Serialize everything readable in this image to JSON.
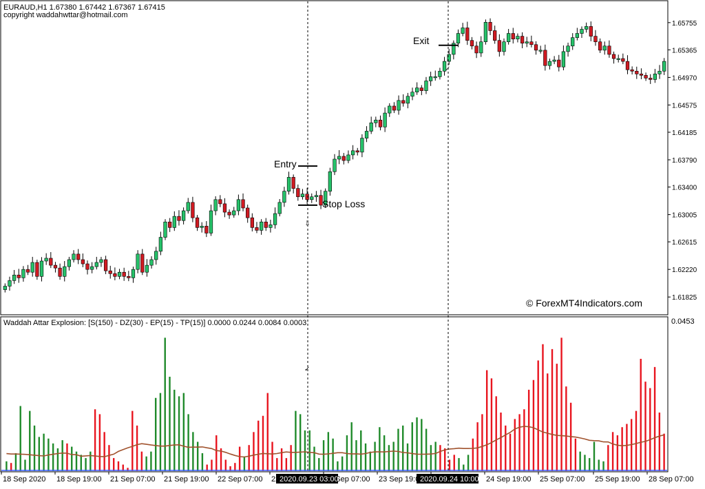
{
  "header": {
    "symbol_line": "EURAUD,H1  1.67380 1.67442 1.67367 1.67415",
    "copyright": "copyright waddahwttar@hotmail.com"
  },
  "watermark": "© ForexMT4Indicators.com",
  "colors": {
    "bull": "#26c26a",
    "bear": "#d01a22",
    "hist_green": "#1f8a2a",
    "hist_red": "#e8141e",
    "explosion_line": "#a0522d",
    "axis": "#000000"
  },
  "chart_data": [
    {
      "type": "candlestick",
      "title": "EURAUD,H1",
      "ylim": [
        1.6162,
        1.66
      ],
      "y_ticks": [
        "1.65755",
        "1.65365",
        "1.64970",
        "1.64575",
        "1.64185",
        "1.63790",
        "1.63400",
        "1.63005",
        "1.62615",
        "1.62220",
        "1.61825"
      ],
      "x_ticks": [
        "18 Sep 2020",
        "18 Sep 19:00",
        "21 Sep 07:00",
        "21 Sep 19:00",
        "22 Sep 07:00",
        "22 Sep 19:00",
        "23 Sep 07:00",
        "23 Sep 19:00",
        "24 Sep 07:00",
        "24 Sep 19:00",
        "25 Sep 07:00",
        "25 Sep 19:00",
        "28 Sep 07:00"
      ],
      "cursor_labels": [
        "2020.09.23 03:00",
        "2020.09.24 10:00"
      ],
      "annotations": {
        "entry": {
          "label": "Entry",
          "price": 1.637
        },
        "stop_loss": {
          "label": "Stop Loss",
          "price": 1.6314
        },
        "exit": {
          "label": "Exit",
          "price": 1.6543
        }
      },
      "closes": [
        1.6198,
        1.6206,
        1.6214,
        1.621,
        1.6222,
        1.6218,
        1.6232,
        1.6212,
        1.6234,
        1.6238,
        1.6228,
        1.6224,
        1.6212,
        1.6226,
        1.6236,
        1.6244,
        1.6236,
        1.623,
        1.6222,
        1.6226,
        1.6232,
        1.6236,
        1.622,
        1.6216,
        1.6212,
        1.6218,
        1.6212,
        1.621,
        1.6222,
        1.6244,
        1.6218,
        1.6228,
        1.6236,
        1.6248,
        1.6268,
        1.629,
        1.6282,
        1.6298,
        1.6292,
        1.6306,
        1.6318,
        1.6296,
        1.6282,
        1.6284,
        1.6274,
        1.6306,
        1.6322,
        1.6316,
        1.6304,
        1.63,
        1.6306,
        1.6322,
        1.631,
        1.6296,
        1.6282,
        1.6278,
        1.629,
        1.6282,
        1.6286,
        1.6302,
        1.6318,
        1.6334,
        1.6354,
        1.6338,
        1.6326,
        1.633,
        1.6322,
        1.6326,
        1.6328,
        1.6314,
        1.6334,
        1.6362,
        1.638,
        1.6384,
        1.6378,
        1.6386,
        1.6392,
        1.639,
        1.641,
        1.642,
        1.6432,
        1.6436,
        1.6426,
        1.6446,
        1.6456,
        1.645,
        1.6464,
        1.646,
        1.647,
        1.6476,
        1.6482,
        1.6478,
        1.6492,
        1.6498,
        1.6498,
        1.6506,
        1.652,
        1.653,
        1.6546,
        1.656,
        1.6568,
        1.655,
        1.6542,
        1.6532,
        1.6548,
        1.6576,
        1.6564,
        1.655,
        1.6534,
        1.6548,
        1.656,
        1.6552,
        1.6556,
        1.6546,
        1.6548,
        1.6544,
        1.6536,
        1.6536,
        1.6514,
        1.652,
        1.6522,
        1.6512,
        1.6534,
        1.6542,
        1.6554,
        1.656,
        1.6566,
        1.657,
        1.6556,
        1.6548,
        1.6536,
        1.6542,
        1.653,
        1.6524,
        1.6524,
        1.652,
        1.6508,
        1.6506,
        1.6502,
        1.65,
        1.6496,
        1.6494,
        1.6502,
        1.6506,
        1.652
      ],
      "explosion_bars": [
        {
          "v": 0.003,
          "c": "g"
        },
        {
          "v": 0.0025,
          "c": "r"
        },
        {
          "v": 0.0055,
          "c": "g"
        },
        {
          "v": 0.02,
          "c": "g"
        },
        {
          "v": 0.0035,
          "c": "g"
        },
        {
          "v": 0.0185,
          "c": "g"
        },
        {
          "v": 0.014,
          "c": "g"
        },
        {
          "v": 0.0105,
          "c": "g"
        },
        {
          "v": 0.0115,
          "c": "g"
        },
        {
          "v": 0.01,
          "c": "g"
        },
        {
          "v": 0.0085,
          "c": "g"
        },
        {
          "v": 0.007,
          "c": "g"
        },
        {
          "v": 0.0095,
          "c": "g"
        },
        {
          "v": 0.0085,
          "c": "r"
        },
        {
          "v": 0.0075,
          "c": "g"
        },
        {
          "v": 0.006,
          "c": "g"
        },
        {
          "v": 0.005,
          "c": "g"
        },
        {
          "v": 0.004,
          "c": "g"
        },
        {
          "v": 0.006,
          "c": "g"
        },
        {
          "v": 0.019,
          "c": "r"
        },
        {
          "v": 0.0175,
          "c": "r"
        },
        {
          "v": 0.012,
          "c": "r"
        },
        {
          "v": 0.008,
          "c": "r"
        },
        {
          "v": 0.004,
          "c": "r"
        },
        {
          "v": 0.003,
          "c": "r"
        },
        {
          "v": 0.002,
          "c": "r"
        },
        {
          "v": 0.001,
          "c": "r"
        },
        {
          "v": 0.0185,
          "c": "r"
        },
        {
          "v": 0.014,
          "c": "r"
        },
        {
          "v": 0.006,
          "c": "r"
        },
        {
          "v": 0.0045,
          "c": "g"
        },
        {
          "v": 0.006,
          "c": "g"
        },
        {
          "v": 0.0225,
          "c": "g"
        },
        {
          "v": 0.024,
          "c": "g"
        },
        {
          "v": 0.041,
          "c": "g"
        },
        {
          "v": 0.029,
          "c": "g"
        },
        {
          "v": 0.025,
          "c": "g"
        },
        {
          "v": 0.023,
          "c": "g"
        },
        {
          "v": 0.024,
          "c": "g"
        },
        {
          "v": 0.0175,
          "c": "g"
        },
        {
          "v": 0.012,
          "c": "g"
        },
        {
          "v": 0.009,
          "c": "g"
        },
        {
          "v": 0.0055,
          "c": "g"
        },
        {
          "v": 0.002,
          "c": "r"
        },
        {
          "v": 0.0035,
          "c": "r"
        },
        {
          "v": 0.011,
          "c": "r"
        },
        {
          "v": 0.007,
          "c": "r"
        },
        {
          "v": 0.0035,
          "c": "r"
        },
        {
          "v": 0.0015,
          "c": "r"
        },
        {
          "v": 0.0025,
          "c": "r"
        },
        {
          "v": 0.0075,
          "c": "r"
        },
        {
          "v": 0.0045,
          "c": "g"
        },
        {
          "v": 0.008,
          "c": "r"
        },
        {
          "v": 0.012,
          "c": "r"
        },
        {
          "v": 0.0155,
          "c": "r"
        },
        {
          "v": 0.017,
          "c": "r"
        },
        {
          "v": 0.024,
          "c": "r"
        },
        {
          "v": 0.009,
          "c": "r"
        },
        {
          "v": 0.004,
          "c": "r"
        },
        {
          "v": 0.007,
          "c": "r"
        },
        {
          "v": 0.004,
          "c": "r"
        },
        {
          "v": 0.008,
          "c": "r"
        },
        {
          "v": 0.0185,
          "c": "g"
        },
        {
          "v": 0.0175,
          "c": "g"
        },
        {
          "v": 0.0125,
          "c": "g"
        },
        {
          "v": 0.0125,
          "c": "g"
        },
        {
          "v": 0.0075,
          "c": "g"
        },
        {
          "v": 0.004,
          "c": "g"
        },
        {
          "v": 0.0095,
          "c": "g"
        },
        {
          "v": 0.012,
          "c": "g"
        },
        {
          "v": 0.01,
          "c": "g"
        },
        {
          "v": 0.003,
          "c": "g"
        },
        {
          "v": 0.0045,
          "c": "g"
        },
        {
          "v": 0.011,
          "c": "g"
        },
        {
          "v": 0.015,
          "c": "g"
        },
        {
          "v": 0.0095,
          "c": "g"
        },
        {
          "v": 0.0125,
          "c": "g"
        },
        {
          "v": 0.0085,
          "c": "g"
        },
        {
          "v": 0.006,
          "c": "g"
        },
        {
          "v": 0.009,
          "c": "g"
        },
        {
          "v": 0.0135,
          "c": "g"
        },
        {
          "v": 0.011,
          "c": "g"
        },
        {
          "v": 0.008,
          "c": "g"
        },
        {
          "v": 0.009,
          "c": "g"
        },
        {
          "v": 0.013,
          "c": "g"
        },
        {
          "v": 0.014,
          "c": "g"
        },
        {
          "v": 0.0085,
          "c": "g"
        },
        {
          "v": 0.015,
          "c": "g"
        },
        {
          "v": 0.0165,
          "c": "g"
        },
        {
          "v": 0.016,
          "c": "g"
        },
        {
          "v": 0.013,
          "c": "g"
        },
        {
          "v": 0.008,
          "c": "g"
        },
        {
          "v": 0.009,
          "c": "g"
        },
        {
          "v": 0.008,
          "c": "r"
        },
        {
          "v": 0.007,
          "c": "r"
        },
        {
          "v": 0.0035,
          "c": "r"
        },
        {
          "v": 0.005,
          "c": "r"
        },
        {
          "v": 0.004,
          "c": "g"
        },
        {
          "v": 0.002,
          "c": "g"
        },
        {
          "v": 0.005,
          "c": "g"
        },
        {
          "v": 0.01,
          "c": "r"
        },
        {
          "v": 0.015,
          "c": "r"
        },
        {
          "v": 0.0175,
          "c": "r"
        },
        {
          "v": 0.031,
          "c": "r"
        },
        {
          "v": 0.0285,
          "c": "r"
        },
        {
          "v": 0.023,
          "c": "r"
        },
        {
          "v": 0.018,
          "c": "r"
        },
        {
          "v": 0.014,
          "c": "r"
        },
        {
          "v": 0.0115,
          "c": "r"
        },
        {
          "v": 0.016,
          "c": "r"
        },
        {
          "v": 0.0175,
          "c": "r"
        },
        {
          "v": 0.019,
          "c": "r"
        },
        {
          "v": 0.025,
          "c": "r"
        },
        {
          "v": 0.028,
          "c": "r"
        },
        {
          "v": 0.034,
          "c": "r"
        },
        {
          "v": 0.039,
          "c": "r"
        },
        {
          "v": 0.03,
          "c": "r"
        },
        {
          "v": 0.0375,
          "c": "r"
        },
        {
          "v": 0.033,
          "c": "r"
        },
        {
          "v": 0.041,
          "c": "r"
        },
        {
          "v": 0.026,
          "c": "r"
        },
        {
          "v": 0.021,
          "c": "r"
        },
        {
          "v": 0.01,
          "c": "r"
        },
        {
          "v": 0.006,
          "c": "g"
        },
        {
          "v": 0.005,
          "c": "g"
        },
        {
          "v": 0.004,
          "c": "g"
        },
        {
          "v": 0.009,
          "c": "g"
        },
        {
          "v": 0.0035,
          "c": "g"
        },
        {
          "v": 0.003,
          "c": "g"
        },
        {
          "v": 0.008,
          "c": "r"
        },
        {
          "v": 0.012,
          "c": "r"
        },
        {
          "v": 0.011,
          "c": "r"
        },
        {
          "v": 0.0135,
          "c": "r"
        },
        {
          "v": 0.0145,
          "c": "r"
        },
        {
          "v": 0.016,
          "c": "r"
        },
        {
          "v": 0.0185,
          "c": "r"
        },
        {
          "v": 0.0345,
          "c": "r"
        },
        {
          "v": 0.0275,
          "c": "r"
        },
        {
          "v": 0.0255,
          "c": "r"
        },
        {
          "v": 0.032,
          "c": "r"
        },
        {
          "v": 0.018,
          "c": "r"
        },
        {
          "v": 0.0115,
          "c": "r"
        }
      ]
    },
    {
      "type": "bar",
      "title": "Waddah Attar Explosion: [S(150) - DZ(30) - EP(15) - TP(15)] 0.0000 0.0244 0.0084 0.0003",
      "ylim": [
        0,
        0.0453
      ],
      "y_ticks": [
        "0.0453"
      ],
      "series": [
        {
          "name": "Explosion",
          "type": "bar"
        },
        {
          "name": "Signal",
          "type": "line"
        }
      ]
    }
  ]
}
